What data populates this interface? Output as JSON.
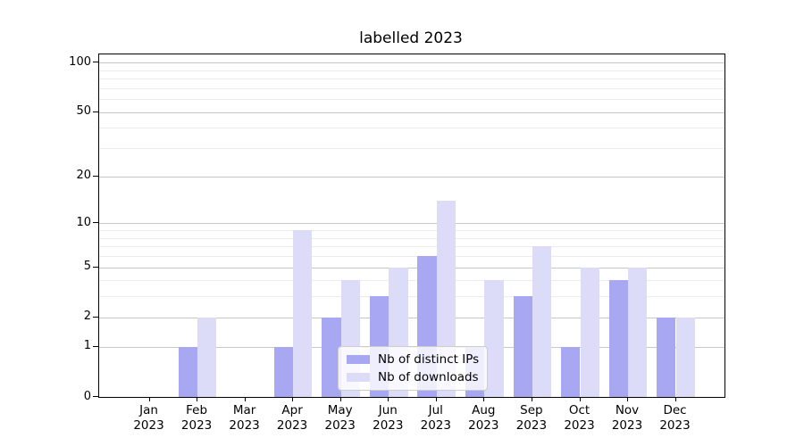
{
  "chart_data": {
    "type": "bar",
    "title": "labelled 2023",
    "xlabel": "",
    "ylabel": "",
    "yscale": "log1p",
    "ylim": [
      0,
      113
    ],
    "grid": true,
    "legend_position": "lower center (inside plot)",
    "categories": [
      {
        "month": "Jan",
        "year": "2023"
      },
      {
        "month": "Feb",
        "year": "2023"
      },
      {
        "month": "Mar",
        "year": "2023"
      },
      {
        "month": "Apr",
        "year": "2023"
      },
      {
        "month": "May",
        "year": "2023"
      },
      {
        "month": "Jun",
        "year": "2023"
      },
      {
        "month": "Jul",
        "year": "2023"
      },
      {
        "month": "Aug",
        "year": "2023"
      },
      {
        "month": "Sep",
        "year": "2023"
      },
      {
        "month": "Oct",
        "year": "2023"
      },
      {
        "month": "Nov",
        "year": "2023"
      },
      {
        "month": "Dec",
        "year": "2023"
      }
    ],
    "series": [
      {
        "name": "Nb of distinct IPs",
        "color": "#a8a8f2",
        "values": [
          0,
          1,
          0,
          1,
          2,
          3,
          6,
          1,
          3,
          1,
          4,
          2
        ]
      },
      {
        "name": "Nb of downloads",
        "color": "#dcdcf8",
        "values": [
          0,
          2,
          0,
          9,
          4,
          5,
          14,
          4,
          7,
          5,
          5,
          2
        ]
      }
    ],
    "yticks": [
      {
        "value": 100,
        "label": "100"
      },
      {
        "value": 50,
        "label": "50"
      },
      {
        "value": 20,
        "label": "20"
      },
      {
        "value": 10,
        "label": "10"
      },
      {
        "value": 5,
        "label": "5"
      },
      {
        "value": 2,
        "label": "2"
      },
      {
        "value": 1,
        "label": "1"
      },
      {
        "value": 0,
        "label": "0"
      }
    ],
    "minor_gridlines": [
      3,
      4,
      6,
      7,
      8,
      9,
      30,
      40,
      60,
      70,
      80,
      90
    ]
  },
  "colors": {
    "background": "#ffffff",
    "axis": "#000000",
    "grid_major": "#c6c6c6",
    "grid_minor": "#ececec",
    "legend_border": "#cccccc"
  }
}
